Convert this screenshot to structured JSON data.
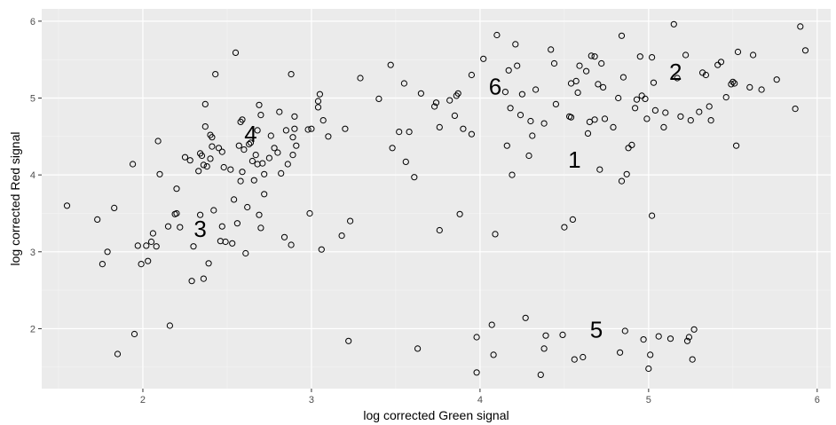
{
  "chart_data": {
    "type": "scatter",
    "xlabel": "log corrected Green signal",
    "ylabel": "log corrected Red signal",
    "xlim": [
      1.4,
      6.08
    ],
    "ylim": [
      1.22,
      6.16
    ],
    "x_ticks": [
      2,
      3,
      4,
      5,
      6
    ],
    "y_ticks": [
      2,
      3,
      4,
      5,
      6
    ],
    "grid": true,
    "panel_background": "#ebebeb",
    "point_style": "open-circle",
    "point_color": "#000000",
    "annotations": [
      {
        "text": "1",
        "x": 4.56,
        "y": 4.2
      },
      {
        "text": "2",
        "x": 5.16,
        "y": 5.34
      },
      {
        "text": "3",
        "x": 2.34,
        "y": 3.3
      },
      {
        "text": "4",
        "x": 2.64,
        "y": 4.53
      },
      {
        "text": "5",
        "x": 4.69,
        "y": 1.99
      },
      {
        "text": "6",
        "x": 4.09,
        "y": 5.15
      }
    ],
    "points": [
      [
        1.55,
        3.6
      ],
      [
        1.73,
        3.42
      ],
      [
        1.76,
        2.84
      ],
      [
        1.79,
        3.0
      ],
      [
        1.83,
        3.57
      ],
      [
        1.85,
        1.67
      ],
      [
        1.94,
        4.14
      ],
      [
        1.95,
        1.93
      ],
      [
        1.97,
        3.08
      ],
      [
        1.99,
        2.84
      ],
      [
        2.02,
        3.08
      ],
      [
        2.03,
        2.88
      ],
      [
        2.05,
        3.13
      ],
      [
        2.06,
        3.24
      ],
      [
        2.08,
        3.07
      ],
      [
        2.09,
        4.44
      ],
      [
        2.1,
        4.01
      ],
      [
        2.15,
        3.33
      ],
      [
        2.16,
        2.04
      ],
      [
        2.19,
        3.49
      ],
      [
        2.2,
        3.82
      ],
      [
        2.2,
        3.5
      ],
      [
        2.22,
        3.32
      ],
      [
        2.25,
        4.23
      ],
      [
        2.28,
        4.19
      ],
      [
        2.29,
        2.62
      ],
      [
        2.3,
        3.07
      ],
      [
        2.33,
        4.05
      ],
      [
        2.34,
        3.48
      ],
      [
        2.34,
        4.28
      ],
      [
        2.35,
        4.25
      ],
      [
        2.36,
        4.13
      ],
      [
        2.36,
        2.65
      ],
      [
        2.37,
        4.63
      ],
      [
        2.37,
        4.92
      ],
      [
        2.38,
        4.11
      ],
      [
        2.39,
        2.85
      ],
      [
        2.4,
        4.52
      ],
      [
        2.4,
        4.21
      ],
      [
        2.41,
        4.37
      ],
      [
        2.41,
        4.49
      ],
      [
        2.42,
        3.54
      ],
      [
        2.43,
        5.31
      ],
      [
        2.45,
        4.35
      ],
      [
        2.46,
        3.14
      ],
      [
        2.47,
        3.33
      ],
      [
        2.47,
        4.3
      ],
      [
        2.48,
        4.1
      ],
      [
        2.49,
        3.13
      ],
      [
        2.52,
        4.07
      ],
      [
        2.53,
        3.11
      ],
      [
        2.54,
        3.68
      ],
      [
        2.55,
        5.59
      ],
      [
        2.56,
        3.37
      ],
      [
        2.57,
        4.38
      ],
      [
        2.58,
        4.69
      ],
      [
        2.58,
        3.92
      ],
      [
        2.59,
        4.04
      ],
      [
        2.59,
        4.72
      ],
      [
        2.6,
        4.33
      ],
      [
        2.61,
        2.98
      ],
      [
        2.62,
        3.58
      ],
      [
        2.63,
        4.4
      ],
      [
        2.64,
        4.42
      ],
      [
        2.65,
        4.18
      ],
      [
        2.66,
        3.93
      ],
      [
        2.67,
        4.26
      ],
      [
        2.68,
        4.58
      ],
      [
        2.68,
        4.14
      ],
      [
        2.69,
        4.91
      ],
      [
        2.69,
        3.48
      ],
      [
        2.7,
        4.78
      ],
      [
        2.7,
        3.31
      ],
      [
        2.71,
        4.15
      ],
      [
        2.72,
        4.01
      ],
      [
        2.72,
        3.75
      ],
      [
        2.75,
        4.22
      ],
      [
        2.76,
        4.51
      ],
      [
        2.78,
        4.35
      ],
      [
        2.8,
        4.29
      ],
      [
        2.81,
        4.82
      ],
      [
        2.82,
        4.02
      ],
      [
        2.84,
        3.19
      ],
      [
        2.85,
        4.58
      ],
      [
        2.86,
        4.14
      ],
      [
        2.88,
        3.09
      ],
      [
        2.88,
        5.31
      ],
      [
        2.89,
        4.49
      ],
      [
        2.89,
        4.26
      ],
      [
        2.9,
        4.76
      ],
      [
        2.9,
        4.6
      ],
      [
        2.91,
        4.38
      ],
      [
        2.98,
        4.59
      ],
      [
        2.99,
        3.5
      ],
      [
        3.0,
        4.6
      ],
      [
        3.04,
        4.96
      ],
      [
        3.04,
        4.88
      ],
      [
        3.05,
        5.05
      ],
      [
        3.06,
        3.03
      ],
      [
        3.07,
        4.71
      ],
      [
        3.1,
        4.5
      ],
      [
        3.18,
        3.21
      ],
      [
        3.2,
        4.6
      ],
      [
        3.22,
        1.84
      ],
      [
        3.23,
        3.4
      ],
      [
        3.29,
        5.26
      ],
      [
        3.4,
        4.99
      ],
      [
        3.47,
        5.43
      ],
      [
        3.48,
        4.35
      ],
      [
        3.52,
        4.56
      ],
      [
        3.55,
        5.19
      ],
      [
        3.56,
        4.17
      ],
      [
        3.58,
        4.56
      ],
      [
        3.61,
        3.97
      ],
      [
        3.63,
        1.74
      ],
      [
        3.65,
        5.06
      ],
      [
        3.73,
        4.89
      ],
      [
        3.74,
        4.94
      ],
      [
        3.76,
        3.28
      ],
      [
        3.76,
        4.62
      ],
      [
        3.82,
        4.97
      ],
      [
        3.85,
        4.77
      ],
      [
        3.86,
        5.03
      ],
      [
        3.87,
        5.06
      ],
      [
        3.88,
        3.49
      ],
      [
        3.9,
        4.6
      ],
      [
        3.95,
        5.3
      ],
      [
        3.95,
        4.53
      ],
      [
        3.98,
        1.43
      ],
      [
        3.98,
        1.89
      ],
      [
        4.02,
        5.51
      ],
      [
        4.07,
        2.05
      ],
      [
        4.08,
        1.66
      ],
      [
        4.09,
        3.23
      ],
      [
        4.1,
        5.82
      ],
      [
        4.15,
        5.08
      ],
      [
        4.16,
        4.38
      ],
      [
        4.17,
        5.36
      ],
      [
        4.18,
        4.87
      ],
      [
        4.19,
        4.0
      ],
      [
        4.21,
        5.7
      ],
      [
        4.22,
        5.42
      ],
      [
        4.24,
        4.78
      ],
      [
        4.25,
        5.05
      ],
      [
        4.27,
        2.14
      ],
      [
        4.29,
        4.25
      ],
      [
        4.3,
        4.7
      ],
      [
        4.31,
        4.51
      ],
      [
        4.33,
        5.11
      ],
      [
        4.36,
        1.4
      ],
      [
        4.38,
        1.74
      ],
      [
        4.38,
        4.67
      ],
      [
        4.39,
        1.91
      ],
      [
        4.42,
        5.63
      ],
      [
        4.44,
        5.45
      ],
      [
        4.45,
        4.92
      ],
      [
        4.49,
        1.92
      ],
      [
        4.5,
        3.32
      ],
      [
        4.53,
        4.76
      ],
      [
        4.54,
        4.75
      ],
      [
        4.54,
        5.19
      ],
      [
        4.55,
        3.42
      ],
      [
        4.56,
        1.6
      ],
      [
        4.57,
        5.22
      ],
      [
        4.58,
        5.07
      ],
      [
        4.59,
        5.42
      ],
      [
        4.61,
        1.63
      ],
      [
        4.63,
        5.35
      ],
      [
        4.64,
        4.54
      ],
      [
        4.65,
        4.69
      ],
      [
        4.66,
        5.55
      ],
      [
        4.68,
        5.54
      ],
      [
        4.68,
        4.72
      ],
      [
        4.7,
        5.18
      ],
      [
        4.71,
        4.07
      ],
      [
        4.72,
        5.45
      ],
      [
        4.73,
        5.14
      ],
      [
        4.74,
        4.73
      ],
      [
        4.79,
        4.62
      ],
      [
        4.82,
        5.0
      ],
      [
        4.83,
        1.69
      ],
      [
        4.84,
        5.81
      ],
      [
        4.84,
        3.92
      ],
      [
        4.85,
        5.27
      ],
      [
        4.86,
        1.97
      ],
      [
        4.87,
        4.01
      ],
      [
        4.88,
        4.35
      ],
      [
        4.9,
        4.39
      ],
      [
        4.92,
        4.87
      ],
      [
        4.93,
        4.98
      ],
      [
        4.95,
        5.54
      ],
      [
        4.96,
        5.03
      ],
      [
        4.97,
        1.86
      ],
      [
        4.98,
        4.99
      ],
      [
        4.99,
        4.73
      ],
      [
        5.0,
        1.48
      ],
      [
        5.01,
        1.66
      ],
      [
        5.02,
        5.53
      ],
      [
        5.02,
        3.47
      ],
      [
        5.03,
        5.2
      ],
      [
        5.04,
        4.84
      ],
      [
        5.06,
        1.9
      ],
      [
        5.09,
        4.62
      ],
      [
        5.1,
        4.81
      ],
      [
        5.13,
        1.87
      ],
      [
        5.15,
        5.96
      ],
      [
        5.17,
        5.26
      ],
      [
        5.19,
        4.76
      ],
      [
        5.22,
        5.56
      ],
      [
        5.23,
        1.84
      ],
      [
        5.24,
        1.89
      ],
      [
        5.25,
        4.71
      ],
      [
        5.26,
        1.6
      ],
      [
        5.27,
        1.99
      ],
      [
        5.3,
        4.82
      ],
      [
        5.32,
        5.33
      ],
      [
        5.34,
        5.3
      ],
      [
        5.36,
        4.89
      ],
      [
        5.37,
        4.71
      ],
      [
        5.41,
        5.43
      ],
      [
        5.43,
        5.47
      ],
      [
        5.46,
        5.01
      ],
      [
        5.49,
        5.18
      ],
      [
        5.5,
        5.21
      ],
      [
        5.51,
        5.19
      ],
      [
        5.52,
        4.38
      ],
      [
        5.53,
        5.6
      ],
      [
        5.6,
        5.14
      ],
      [
        5.62,
        5.56
      ],
      [
        5.67,
        5.11
      ],
      [
        5.76,
        5.24
      ],
      [
        5.87,
        4.86
      ],
      [
        5.9,
        5.93
      ],
      [
        5.93,
        5.62
      ]
    ]
  }
}
